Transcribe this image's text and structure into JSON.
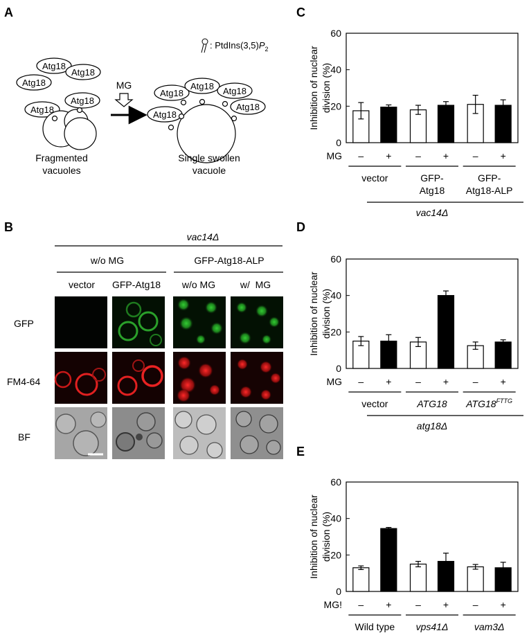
{
  "panels": {
    "A": {
      "label": "A",
      "legend_text": ": PtdIns(3,5)",
      "legend_text_italic": "P",
      "legend_sub": "2",
      "atg18": "Atg18",
      "mg": "MG",
      "left_caption": [
        "Fragmented",
        "vacuoles"
      ],
      "right_caption": [
        "Single swollen",
        "vacuole"
      ]
    },
    "B": {
      "label": "B",
      "strain": "vac14Δ",
      "groups": [
        "w/o MG",
        "GFP-Atg18-ALP"
      ],
      "columns": [
        "vector",
        "GFP-Atg18",
        "w/o MG",
        "w/  MG"
      ],
      "rows": [
        "GFP",
        "FM4-64",
        "BF"
      ]
    },
    "C": {
      "label": "C"
    },
    "D": {
      "label": "D"
    },
    "E": {
      "label": "E"
    }
  },
  "chart_data": [
    {
      "id": "C",
      "type": "bar",
      "ylabel": [
        "Inhibition of nuclear",
        "division (%)"
      ],
      "ylim": [
        0,
        60
      ],
      "yticks": [
        0,
        20,
        40,
        60
      ],
      "mg_label": "MG",
      "mg_signs": [
        "–",
        "+"
      ],
      "groups": [
        {
          "name": [
            "vector"
          ],
          "minus": 17.5,
          "minus_err": 4.5,
          "plus": 19.5,
          "plus_err": 1.2
        },
        {
          "name": [
            "GFP-",
            "Atg18"
          ],
          "minus": 18,
          "minus_err": 2.5,
          "plus": 20.5,
          "plus_err": 2.0
        },
        {
          "name": [
            "GFP-",
            "Atg18-ALP"
          ],
          "minus": 21,
          "minus_err": 5.0,
          "plus": 20.5,
          "plus_err": 3.0
        }
      ],
      "strain": "vac14Δ",
      "series": [
        {
          "name": "–",
          "color": "#ffffff"
        },
        {
          "name": "+",
          "color": "#000000"
        }
      ]
    },
    {
      "id": "D",
      "type": "bar",
      "ylabel": [
        "Inhibition of nuclear",
        "division (%)"
      ],
      "ylim": [
        0,
        60
      ],
      "yticks": [
        0,
        20,
        40,
        60
      ],
      "mg_label": "MG",
      "mg_signs": [
        "–",
        "+"
      ],
      "groups": [
        {
          "name": [
            "vector"
          ],
          "minus": 15,
          "minus_err": 2.5,
          "plus": 15,
          "plus_err": 3.5
        },
        {
          "name": [
            "ATG18"
          ],
          "italic": true,
          "minus": 14.5,
          "minus_err": 2.5,
          "plus": 40,
          "plus_err": 2.5
        },
        {
          "name": [
            "ATG18"
          ],
          "italic": true,
          "sup": "FTTG",
          "minus": 12.5,
          "minus_err": 2.0,
          "plus": 14.5,
          "plus_err": 1.2
        }
      ],
      "strain": "atg18Δ",
      "series": [
        {
          "name": "–",
          "color": "#ffffff"
        },
        {
          "name": "+",
          "color": "#000000"
        }
      ]
    },
    {
      "id": "E",
      "type": "bar",
      "ylabel": [
        "Inhibition of nuclear",
        "division (%)"
      ],
      "ylim": [
        0,
        60
      ],
      "yticks": [
        0,
        20,
        40,
        60
      ],
      "mg_label": "MG!",
      "mg_signs": [
        "–",
        "+"
      ],
      "groups": [
        {
          "name": [
            "Wild type"
          ],
          "minus": 13,
          "minus_err": 1.0,
          "plus": 34.5,
          "plus_err": 0.6
        },
        {
          "name": [
            "vps41Δ"
          ],
          "italic": true,
          "minus": 15,
          "minus_err": 1.5,
          "plus": 16.5,
          "plus_err": 4.5
        },
        {
          "name": [
            "vam3Δ"
          ],
          "italic": true,
          "minus": 13.5,
          "minus_err": 1.3,
          "plus": 13,
          "plus_err": 3.0
        }
      ],
      "series": [
        {
          "name": "–",
          "color": "#ffffff"
        },
        {
          "name": "+",
          "color": "#000000"
        }
      ]
    }
  ]
}
